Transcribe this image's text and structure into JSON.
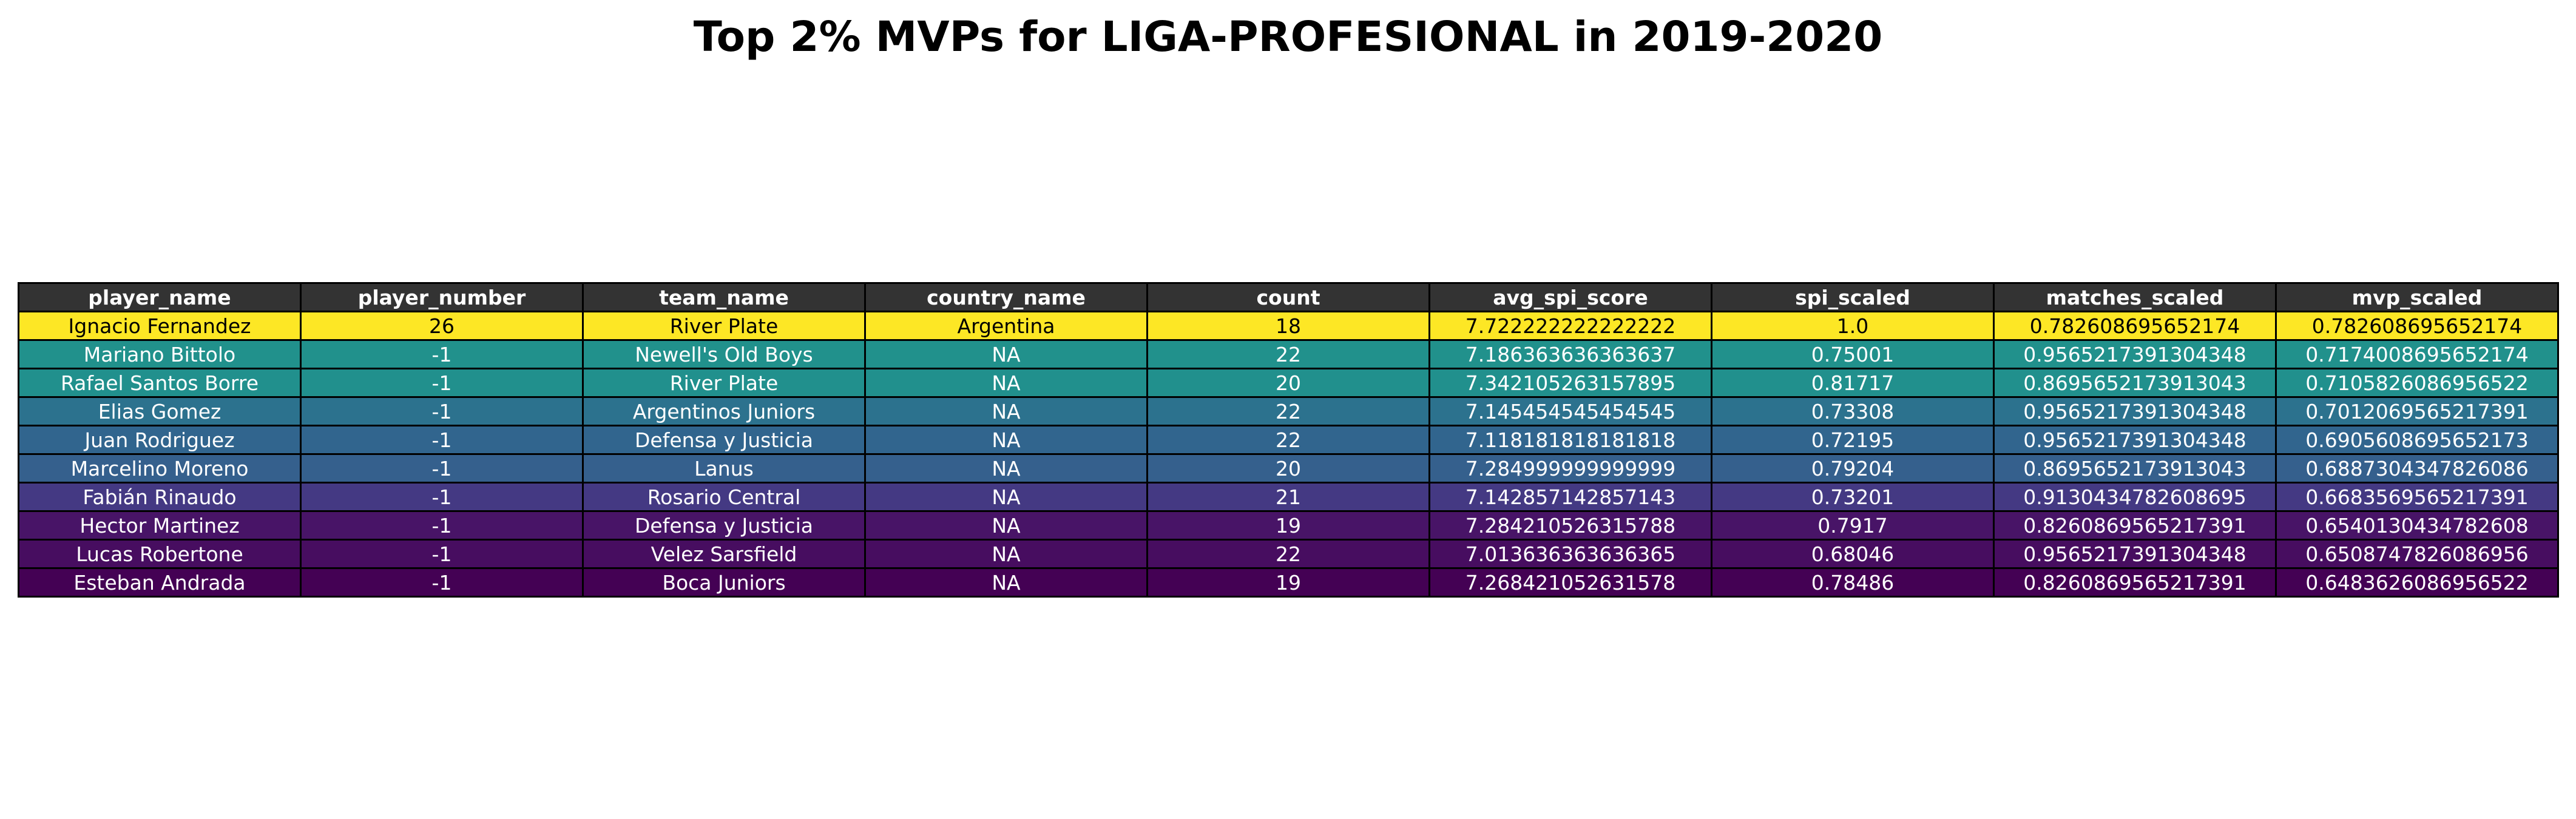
{
  "title": "Top 2% MVPs for LIGA-PROFESIONAL in 2019-2020",
  "chart_data": {
    "type": "table",
    "title": "Top 2% MVPs for LIGA-PROFESIONAL in 2019-2020",
    "columns": [
      "player_name",
      "player_number",
      "team_name",
      "country_name",
      "count",
      "avg_spi_score",
      "spi_scaled",
      "matches_scaled",
      "mvp_scaled"
    ],
    "header_color": "#333333",
    "rows": [
      {
        "color": "#fde725",
        "text_color": "#000000",
        "cells": [
          "Ignacio Fernandez",
          "26",
          "River Plate",
          "Argentina",
          "18",
          "7.722222222222222",
          "1.0",
          "0.782608695652174",
          "0.782608695652174"
        ]
      },
      {
        "color": "#21918c",
        "text_color": "#ffffff",
        "cells": [
          "Mariano Bittolo",
          "-1",
          "Newell's Old Boys",
          "NA",
          "22",
          "7.186363636363637",
          "0.75001",
          "0.9565217391304348",
          "0.7174008695652174"
        ]
      },
      {
        "color": "#21908d",
        "text_color": "#ffffff",
        "cells": [
          "Rafael Santos Borre",
          "-1",
          "River Plate",
          "NA",
          "20",
          "7.342105263157895",
          "0.81717",
          "0.8695652173913043",
          "0.7105826086956522"
        ]
      },
      {
        "color": "#2c728e",
        "text_color": "#ffffff",
        "cells": [
          "Elias Gomez",
          "-1",
          "Argentinos Juniors",
          "NA",
          "22",
          "7.145454545454545",
          "0.73308",
          "0.9565217391304348",
          "0.7012069565217391"
        ]
      },
      {
        "color": "#31658e",
        "text_color": "#ffffff",
        "cells": [
          "Juan Rodriguez",
          "-1",
          "Defensa y Justicia",
          "NA",
          "22",
          "7.118181818181818",
          "0.72195",
          "0.9565217391304348",
          "0.6905608695652173"
        ]
      },
      {
        "color": "#35608d",
        "text_color": "#ffffff",
        "cells": [
          "Marcelino Moreno",
          "-1",
          "Lanus",
          "NA",
          "20",
          "7.284999999999999",
          "0.79204",
          "0.8695652173913043",
          "0.6887304347826086"
        ]
      },
      {
        "color": "#443983",
        "text_color": "#ffffff",
        "cells": [
          "Fabián Rinaudo",
          "-1",
          "Rosario Central",
          "NA",
          "21",
          "7.142857142857143",
          "0.73201",
          "0.9130434782608695",
          "0.6683569565217391"
        ]
      },
      {
        "color": "#481467",
        "text_color": "#ffffff",
        "cells": [
          "Hector Martinez",
          "-1",
          "Defensa y Justicia",
          "NA",
          "19",
          "7.284210526315788",
          "0.7917",
          "0.8260869565217391",
          "0.6540130434782608"
        ]
      },
      {
        "color": "#470d60",
        "text_color": "#ffffff",
        "cells": [
          "Lucas Robertone",
          "-1",
          "Velez Sarsfield",
          "NA",
          "22",
          "7.013636363636365",
          "0.68046",
          "0.9565217391304348",
          "0.6508747826086956"
        ]
      },
      {
        "color": "#440154",
        "text_color": "#ffffff",
        "cells": [
          "Esteban Andrada",
          "-1",
          "Boca Juniors",
          "NA",
          "19",
          "7.268421052631578",
          "0.78486",
          "0.8260869565217391",
          "0.6483626086956522"
        ]
      }
    ]
  }
}
